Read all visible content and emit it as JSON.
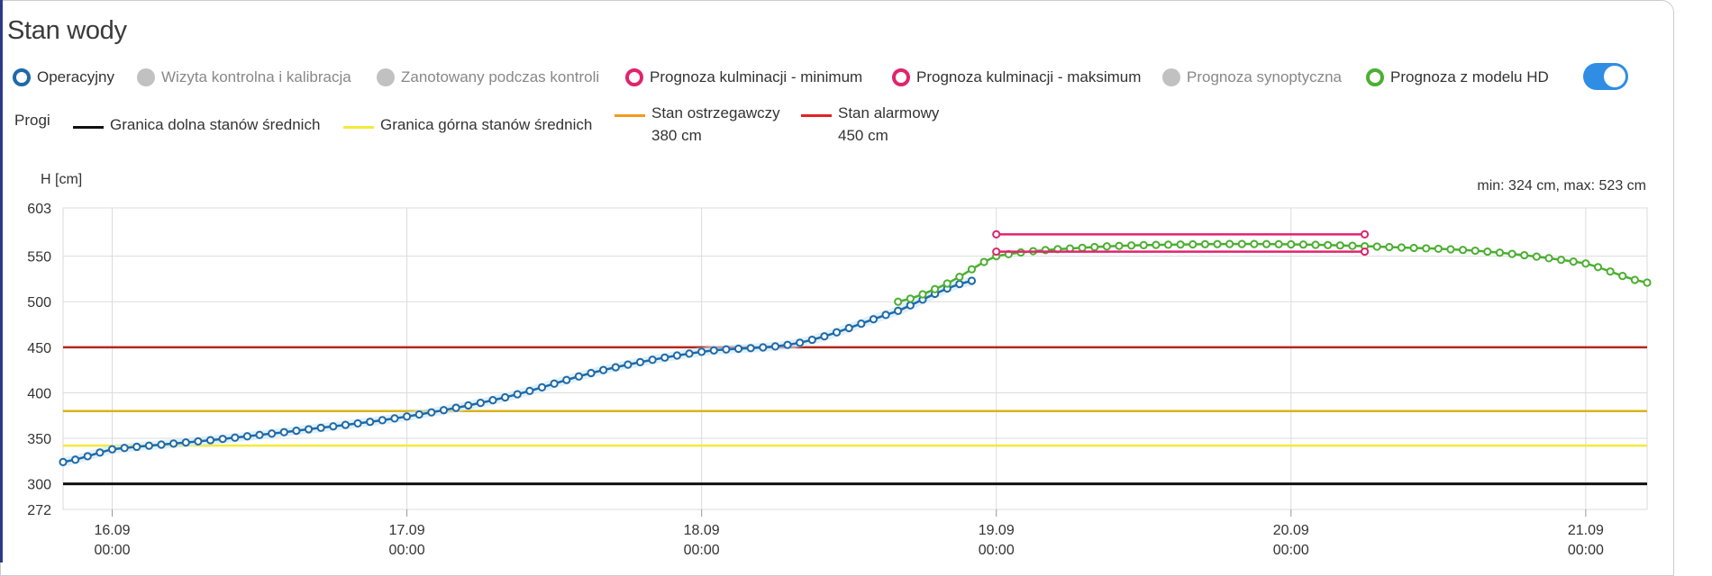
{
  "title": "Stan wody",
  "legend": [
    {
      "label": "Operacyjny",
      "style": "ring",
      "color": "#1e6aa8",
      "active": true
    },
    {
      "label": "Wizyta kontrolna i kalibracja",
      "style": "fill",
      "color": "#c1c1c1",
      "active": false
    },
    {
      "label": "Zanotowany podczas kontroli",
      "style": "fill",
      "color": "#c1c1c1",
      "active": false
    },
    {
      "label": "Prognoza kulminacji - minimum",
      "style": "ring",
      "color": "#e0246e",
      "active": true
    },
    {
      "label": "Prognoza kulminacji - maksimum",
      "style": "ring",
      "color": "#e0246e",
      "active": true
    },
    {
      "label": "Prognoza synoptyczna",
      "style": "fill",
      "color": "#c1c1c1",
      "active": false
    },
    {
      "label": "Prognoza z modelu HD",
      "style": "ring",
      "color": "#4caf32",
      "active": true
    }
  ],
  "toggle": {
    "on": true,
    "color": "#2f8de4"
  },
  "thresholds_label": "Progi",
  "thresholds": [
    {
      "label": "Granica dolna stanów średnich",
      "value_text": "",
      "color": "#111111"
    },
    {
      "label": "Granica górna stanów średnich",
      "value_text": "",
      "color": "#f2ea3a"
    },
    {
      "label": "Stan ostrzegawczy",
      "value_text": "380 cm",
      "color": "#f39a1e"
    },
    {
      "label": "Stan alarmowy",
      "value_text": "450 cm",
      "color": "#e32222"
    }
  ],
  "chart_data": {
    "type": "line",
    "ylabel": "H [cm]",
    "summary": "min: 324 cm, max: 523 cm",
    "ylim": [
      272,
      603
    ],
    "y_ticks": [
      603,
      550,
      500,
      450,
      400,
      350,
      300,
      272
    ],
    "x_range": [
      "2024-09-15 20:00",
      "2024-09-21 05:00"
    ],
    "x_ticks": [
      {
        "date": "16.09",
        "time": "00:00",
        "x": "2024-09-16 00:00"
      },
      {
        "date": "17.09",
        "time": "00:00",
        "x": "2024-09-17 00:00"
      },
      {
        "date": "18.09",
        "time": "00:00",
        "x": "2024-09-18 00:00"
      },
      {
        "date": "19.09",
        "time": "00:00",
        "x": "2024-09-19 00:00"
      },
      {
        "date": "20.09",
        "time": "00:00",
        "x": "2024-09-20 00:00"
      },
      {
        "date": "21.09",
        "time": "00:00",
        "x": "2024-09-21 00:00"
      }
    ],
    "threshold_lines": [
      {
        "name": "Granica dolna stanów średnich",
        "value": 300,
        "color": "#111111"
      },
      {
        "name": "Granica górna stanów średnich",
        "value": 342,
        "color": "#f2ea3a"
      },
      {
        "name": "Stan ostrzegawczy",
        "value": 380,
        "color": "#d9b31a"
      },
      {
        "name": "Stan alarmowy",
        "value": 450,
        "color": "#b0281c"
      }
    ],
    "series": [
      {
        "name": "Operacyjny",
        "color": "#1e6aa8",
        "x": [
          "2024-09-15 20:00",
          "2024-09-16 00:00",
          "2024-09-16 08:00",
          "2024-09-16 16:00",
          "2024-09-17 00:00",
          "2024-09-17 08:00",
          "2024-09-17 16:00",
          "2024-09-18 00:00",
          "2024-09-18 08:00",
          "2024-09-18 16:00",
          "2024-09-18 22:00"
        ],
        "y": [
          324,
          338,
          348,
          360,
          374,
          395,
          425,
          445,
          455,
          490,
          523
        ]
      },
      {
        "name": "Prognoza z modelu HD",
        "color": "#4caf32",
        "x": [
          "2024-09-18 16:00",
          "2024-09-18 20:00",
          "2024-09-19 00:00",
          "2024-09-19 08:00",
          "2024-09-19 16:00",
          "2024-09-20 00:00",
          "2024-09-20 08:00",
          "2024-09-20 16:00",
          "2024-09-21 00:00",
          "2024-09-21 05:00"
        ],
        "y": [
          500,
          520,
          550,
          560,
          563,
          563,
          560,
          555,
          542,
          521
        ]
      },
      {
        "name": "Prognoza kulminacji - maksimum",
        "color": "#e0246e",
        "x": [
          "2024-09-19 00:00",
          "2024-09-20 06:00"
        ],
        "y": [
          574,
          574
        ]
      },
      {
        "name": "Prognoza kulminacji - minimum",
        "color": "#e0246e",
        "x": [
          "2024-09-19 00:00",
          "2024-09-20 06:00"
        ],
        "y": [
          555,
          555
        ]
      }
    ]
  }
}
